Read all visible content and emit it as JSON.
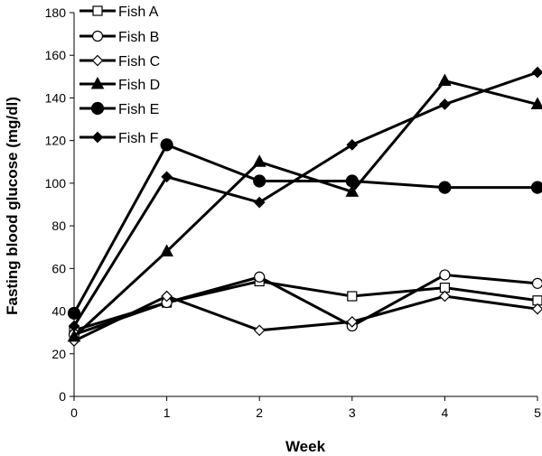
{
  "chart_data": {
    "type": "line",
    "title": "",
    "xlabel": "Week",
    "ylabel": "Fasting blood glucose (mg/dl)",
    "x": [
      0,
      1,
      2,
      3,
      4,
      5
    ],
    "xlim": [
      0,
      5
    ],
    "ylim": [
      0,
      180
    ],
    "xticks": [
      "0",
      "1",
      "2",
      "3",
      "4",
      "5"
    ],
    "yticks": [
      "0",
      "20",
      "40",
      "60",
      "80",
      "100",
      "120",
      "140",
      "160",
      "180"
    ],
    "grid": false,
    "legend_position": "top-left",
    "series": [
      {
        "name": "Fish A",
        "marker": "square-open",
        "values": [
          31,
          44,
          54,
          47,
          51,
          45
        ]
      },
      {
        "name": "Fish B",
        "marker": "circle-open",
        "values": [
          29,
          44,
          56,
          33,
          57,
          53
        ]
      },
      {
        "name": "Fish C",
        "marker": "diamond-open",
        "values": [
          26,
          47,
          31,
          35,
          47,
          41
        ]
      },
      {
        "name": "Fish D",
        "marker": "triangle-filled",
        "values": [
          28,
          68,
          110,
          96,
          148,
          137
        ]
      },
      {
        "name": "Fish E",
        "marker": "circle-filled",
        "values": [
          39,
          118,
          101,
          101,
          98,
          98
        ]
      },
      {
        "name": "Fish F",
        "marker": "diamond-filled",
        "values": [
          33,
          103,
          91,
          118,
          137,
          152
        ]
      }
    ]
  }
}
